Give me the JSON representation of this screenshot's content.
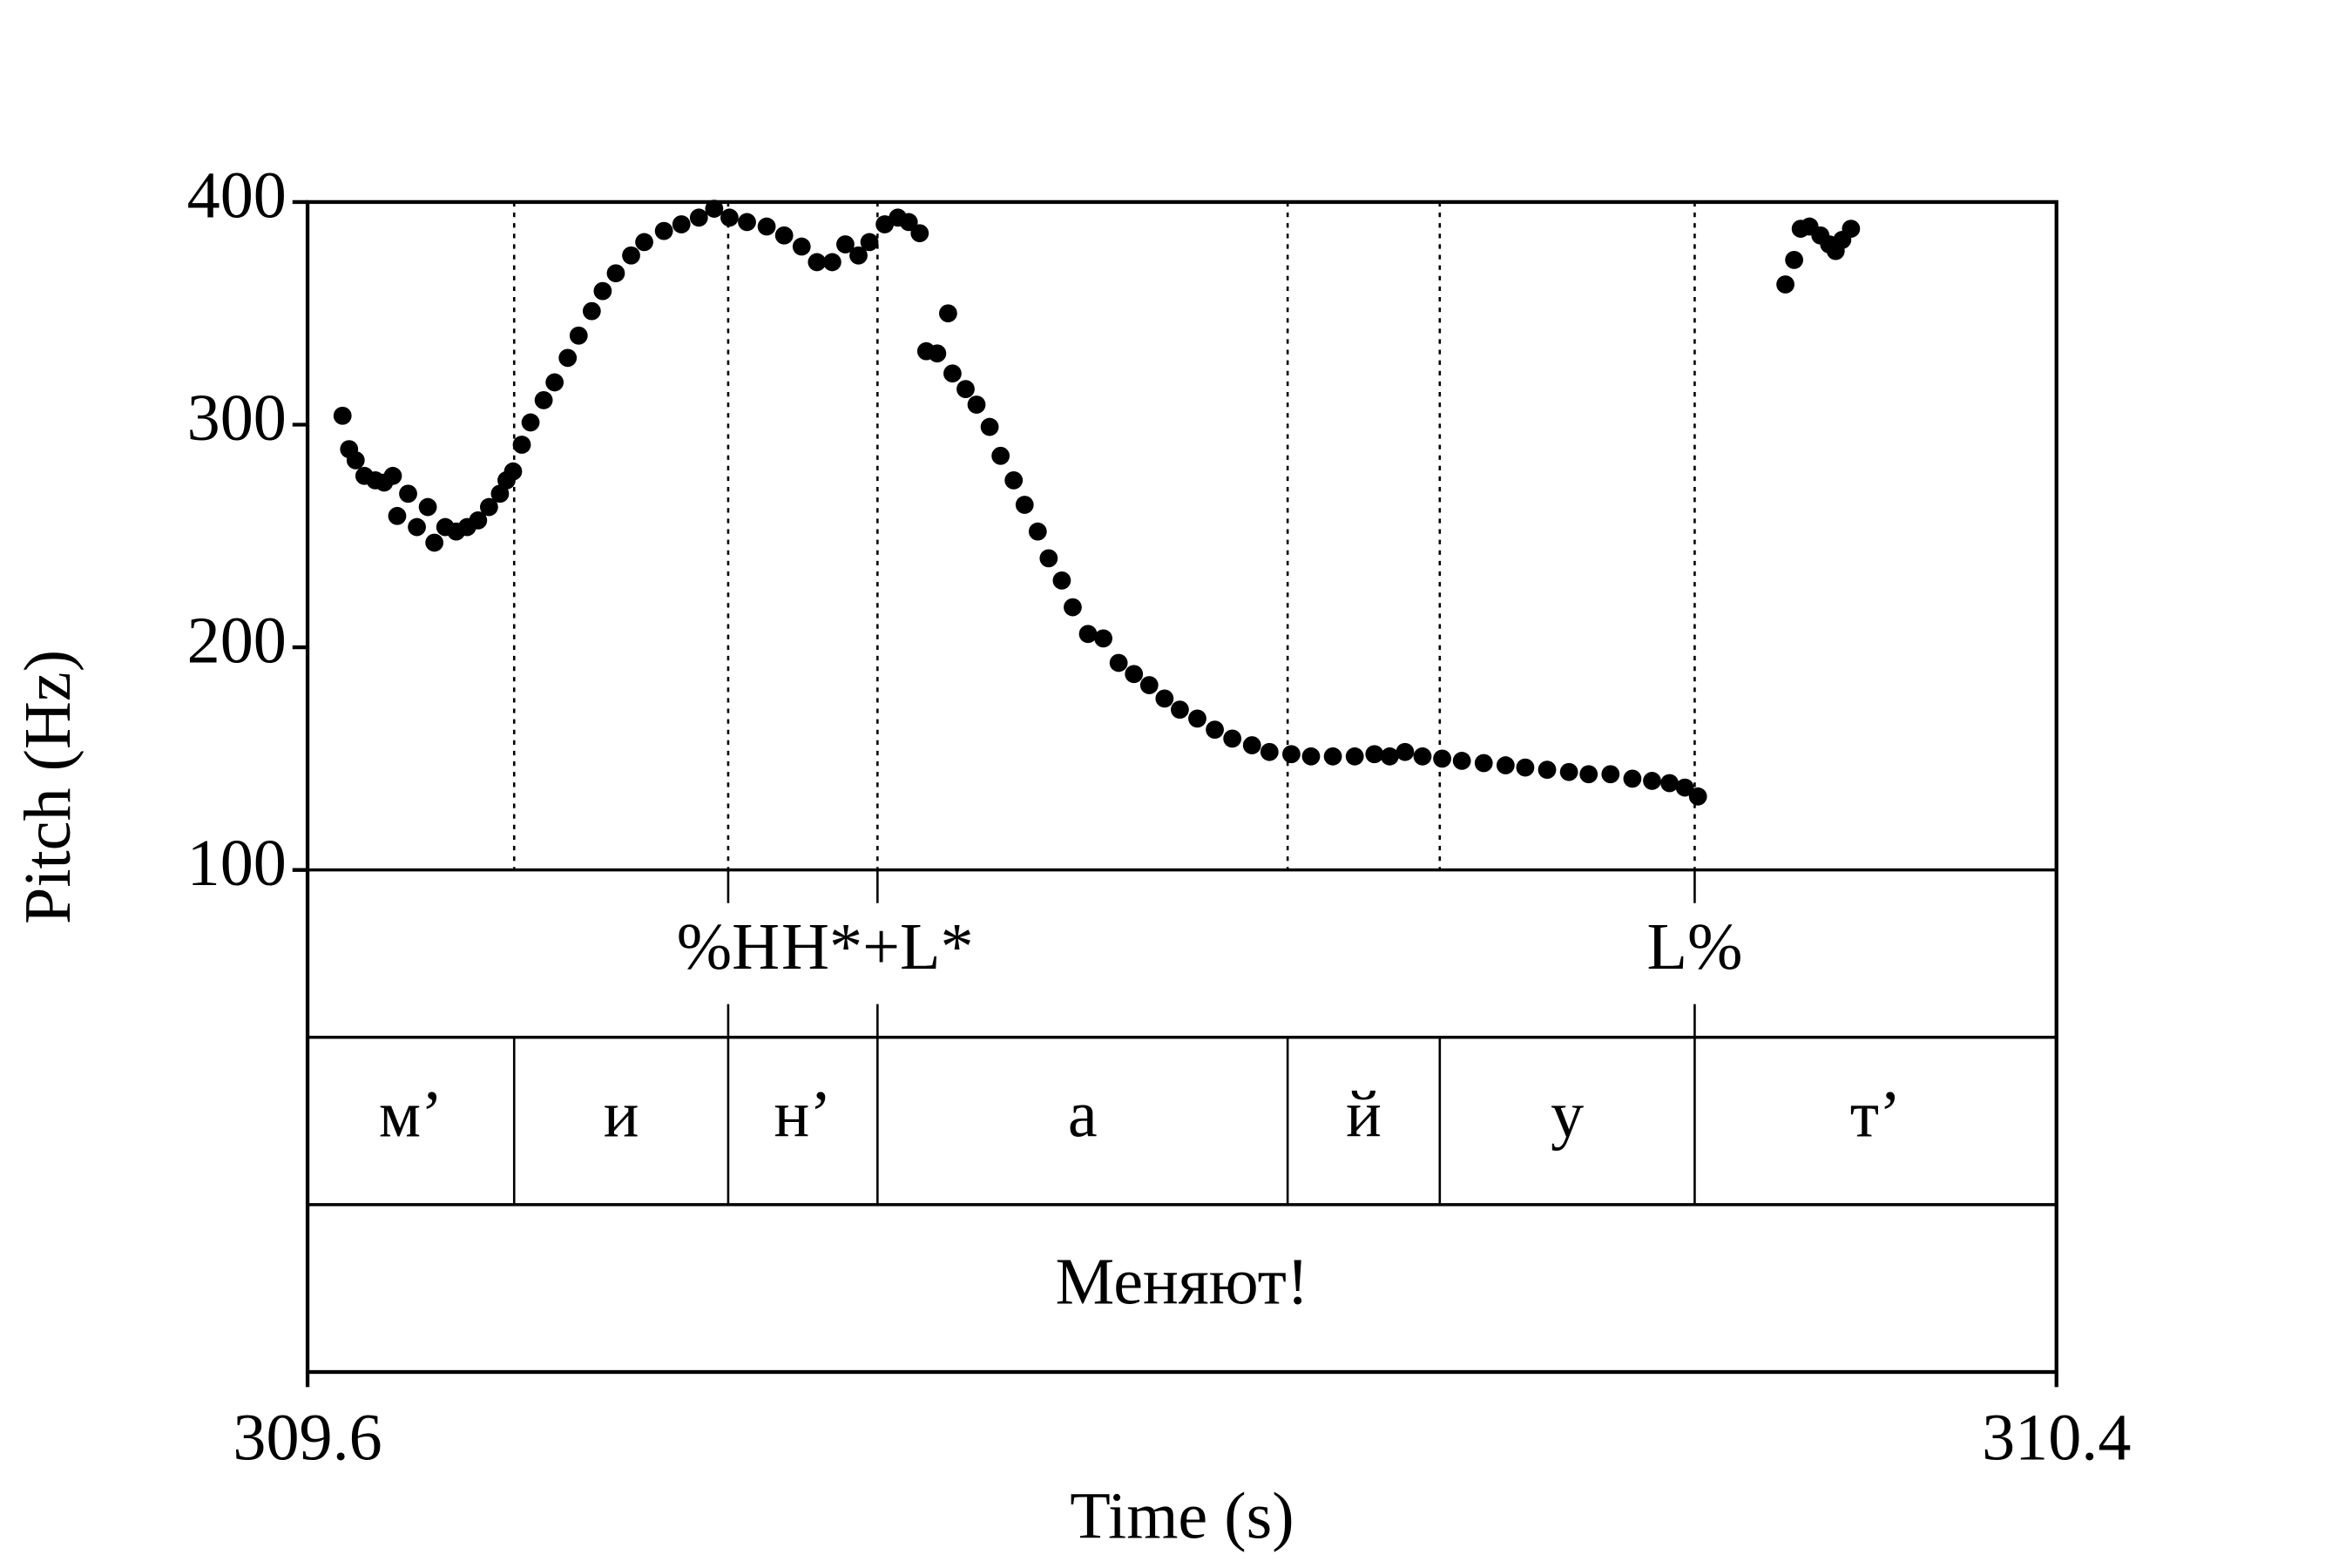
{
  "chart_data": {
    "type": "scatter",
    "x_label": "Time (s)",
    "y_label": "Pitch (Hz)",
    "xlim": [
      309.6,
      310.4
    ],
    "xticks": [
      309.6,
      310.4
    ],
    "ylim": [
      100,
      400
    ],
    "yticks": [
      100,
      200,
      300,
      400
    ],
    "color": "#000000",
    "x": [
      309.616,
      309.619,
      309.622,
      309.626,
      309.631,
      309.635,
      309.639,
      309.641,
      309.646,
      309.65,
      309.655,
      309.658,
      309.663,
      309.668,
      309.673,
      309.678,
      309.683,
      309.688,
      309.691,
      309.694,
      309.698,
      309.702,
      309.708,
      309.713,
      309.719,
      309.724,
      309.73,
      309.735,
      309.741,
      309.748,
      309.754,
      309.763,
      309.771,
      309.779,
      309.786,
      309.793,
      309.801,
      309.81,
      309.818,
      309.826,
      309.833,
      309.84,
      309.846,
      309.852,
      309.857,
      309.864,
      309.87,
      309.875,
      309.88,
      309.883,
      309.888,
      309.893,
      309.895,
      309.901,
      309.906,
      309.912,
      309.917,
      309.923,
      309.928,
      309.934,
      309.939,
      309.945,
      309.95,
      309.957,
      309.964,
      309.971,
      309.978,
      309.985,
      309.992,
      309.999,
      310.007,
      310.015,
      310.023,
      310.032,
      310.04,
      310.05,
      310.059,
      310.069,
      310.079,
      310.088,
      310.095,
      310.102,
      310.11,
      310.119,
      310.128,
      310.138,
      310.148,
      310.157,
      310.167,
      310.177,
      310.186,
      310.196,
      310.206,
      310.215,
      310.223,
      310.23,
      310.236,
      310.276,
      310.28,
      310.283,
      310.287,
      310.292,
      310.296,
      310.299,
      310.302,
      310.306
    ],
    "values": [
      304,
      289,
      284,
      277,
      275,
      274,
      277,
      259,
      269,
      254,
      263,
      247,
      254,
      252,
      254,
      257,
      263,
      269,
      275,
      279,
      291,
      301,
      311,
      319,
      330,
      340,
      351,
      360,
      368,
      376,
      382,
      387,
      390,
      393,
      397,
      393,
      391,
      389,
      385,
      380,
      373,
      373,
      381,
      376,
      382,
      390,
      393,
      391,
      386,
      333,
      332,
      350,
      323,
      316,
      309,
      299,
      286,
      275,
      264,
      252,
      240,
      230,
      218,
      206,
      204,
      193,
      188,
      183,
      177,
      172,
      168,
      163,
      159,
      156,
      153,
      152,
      151,
      151,
      151,
      152,
      151,
      153,
      151,
      150,
      149,
      148,
      147,
      146,
      145,
      144,
      143,
      143,
      141,
      140,
      139,
      137,
      133,
      363,
      374,
      388,
      389,
      385,
      381,
      378,
      383,
      388
    ],
    "tone_tier": {
      "times": [
        309.7924,
        309.8607,
        310.2345
      ],
      "labels": [
        "%H",
        "H*+L*",
        "L%"
      ]
    },
    "segment_tier": {
      "boundaries": [
        309.6945,
        309.7924,
        309.8607,
        310.0483,
        310.1179,
        310.2345
      ],
      "labels": [
        "м’",
        "и",
        "н’",
        "а",
        "й",
        "у",
        "т’"
      ]
    },
    "word_tier": {
      "labels": [
        "Меняют!"
      ]
    }
  }
}
